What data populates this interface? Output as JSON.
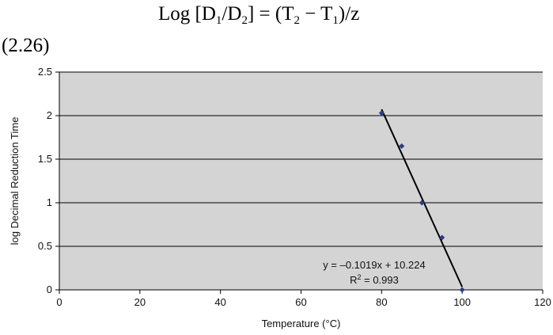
{
  "equation": {
    "log_label": "Log",
    "d1": "D",
    "d1_sub": "1",
    "d2": "D",
    "d2_sub": "2",
    "t2": "T",
    "t2_sub": "2",
    "t1": "T",
    "t1_sub": "1",
    "z": "z",
    "number": "(2.26)"
  },
  "chart_data": {
    "type": "scatter",
    "xlabel": "Temperature (°C)",
    "ylabel": "log Decimal Reduction Time",
    "xlim": [
      0,
      120
    ],
    "ylim": [
      0,
      2.5
    ],
    "xticks": [
      0,
      20,
      40,
      60,
      80,
      100,
      120
    ],
    "yticks": [
      0,
      0.5,
      1,
      1.5,
      2,
      2.5
    ],
    "ytick_labels": [
      "0",
      "0.5",
      "1",
      "1.5",
      "2",
      "2.5"
    ],
    "grid": "horizontal",
    "background": "#d4d4d4",
    "marker_color": "#2b3a8f",
    "series": [
      {
        "x": [
          80,
          85,
          90,
          95,
          100
        ],
        "y": [
          2.03,
          1.65,
          1.0,
          0.6,
          0.0
        ]
      }
    ],
    "trendline": {
      "slope": -0.1019,
      "intercept": 10.224,
      "x_range": [
        80,
        100
      ],
      "equation_label": "y = –0.1019x + 10.224",
      "r2_prefix": "R",
      "r2_sup": "2",
      "r2_value": " = 0.993"
    }
  }
}
